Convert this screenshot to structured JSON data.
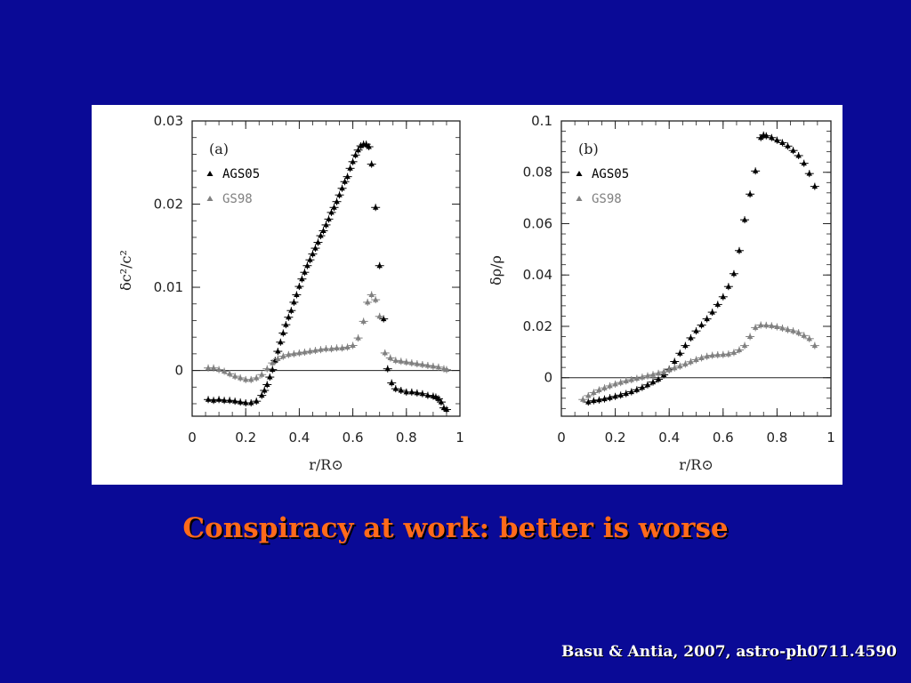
{
  "slide": {
    "caption": "Conspiracy at work: better is worse",
    "citation": "Basu & Antia, 2007, astro-ph0711.4590",
    "background_color": "#0a0a96",
    "caption_color": "#ff6a1a"
  },
  "chart_data": [
    {
      "type": "scatter",
      "panel_label": "(a)",
      "xlabel": "r/R⊙",
      "ylabel": "δc²/c²",
      "xlim": [
        0,
        1
      ],
      "ylim": [
        -0.0055,
        0.03
      ],
      "xticks": [
        0,
        0.2,
        0.4,
        0.6,
        0.8,
        1
      ],
      "xtick_labels": [
        "0",
        "0.2",
        "0.4",
        "0.6",
        "0.8",
        "1"
      ],
      "yticks": [
        0,
        0.01,
        0.02,
        0.03
      ],
      "ytick_labels": [
        "0",
        "0.01",
        "0.02",
        "0.03"
      ],
      "zero_line": true,
      "legend_position": "top-left",
      "series": [
        {
          "name": "AGS05",
          "color": "#000000",
          "x": [
            0.06,
            0.08,
            0.1,
            0.12,
            0.14,
            0.16,
            0.18,
            0.2,
            0.22,
            0.24,
            0.26,
            0.27,
            0.28,
            0.29,
            0.3,
            0.31,
            0.32,
            0.33,
            0.34,
            0.35,
            0.36,
            0.37,
            0.38,
            0.39,
            0.4,
            0.41,
            0.42,
            0.43,
            0.44,
            0.45,
            0.46,
            0.47,
            0.48,
            0.49,
            0.5,
            0.51,
            0.52,
            0.53,
            0.54,
            0.55,
            0.56,
            0.57,
            0.58,
            0.59,
            0.6,
            0.61,
            0.62,
            0.63,
            0.64,
            0.65,
            0.66,
            0.67,
            0.685,
            0.7,
            0.715,
            0.73,
            0.745,
            0.76,
            0.78,
            0.8,
            0.82,
            0.84,
            0.86,
            0.88,
            0.9,
            0.91,
            0.92,
            0.93,
            0.94,
            0.95
          ],
          "y": [
            -0.0035,
            -0.0036,
            -0.0035,
            -0.0036,
            -0.0036,
            -0.0037,
            -0.0038,
            -0.0039,
            -0.0039,
            -0.0037,
            -0.003,
            -0.0024,
            -0.0017,
            -0.0008,
            0.0001,
            0.0012,
            0.0023,
            0.0034,
            0.0045,
            0.0055,
            0.0064,
            0.0072,
            0.0082,
            0.0091,
            0.0101,
            0.011,
            0.0118,
            0.0126,
            0.0133,
            0.014,
            0.0147,
            0.0154,
            0.0162,
            0.0168,
            0.0175,
            0.0182,
            0.019,
            0.0196,
            0.0203,
            0.0211,
            0.0219,
            0.0227,
            0.0233,
            0.0243,
            0.0251,
            0.0259,
            0.0265,
            0.027,
            0.0272,
            0.0272,
            0.0269,
            0.0248,
            0.0196,
            0.0126,
            0.0062,
            0.0002,
            -0.0015,
            -0.0022,
            -0.0024,
            -0.0026,
            -0.0026,
            -0.0027,
            -0.0028,
            -0.003,
            -0.0031,
            -0.0032,
            -0.0034,
            -0.0038,
            -0.0045,
            -0.0047
          ]
        },
        {
          "name": "GS98",
          "color": "#808080",
          "x": [
            0.06,
            0.08,
            0.1,
            0.12,
            0.14,
            0.16,
            0.18,
            0.2,
            0.22,
            0.24,
            0.26,
            0.28,
            0.3,
            0.32,
            0.34,
            0.36,
            0.38,
            0.4,
            0.42,
            0.44,
            0.46,
            0.48,
            0.5,
            0.52,
            0.54,
            0.56,
            0.58,
            0.6,
            0.62,
            0.64,
            0.655,
            0.67,
            0.685,
            0.7,
            0.72,
            0.74,
            0.76,
            0.78,
            0.8,
            0.82,
            0.84,
            0.86,
            0.88,
            0.9,
            0.92,
            0.94,
            0.95
          ],
          "y": [
            0.0003,
            0.0003,
            0.0001,
            -0.0001,
            -0.0004,
            -0.0007,
            -0.0009,
            -0.0011,
            -0.0011,
            -0.0009,
            -0.0005,
            0.0002,
            0.0009,
            0.0014,
            0.0017,
            0.0019,
            0.002,
            0.0021,
            0.0022,
            0.0023,
            0.0024,
            0.0025,
            0.0026,
            0.0026,
            0.0027,
            0.0027,
            0.0028,
            0.003,
            0.0039,
            0.0059,
            0.0082,
            0.0091,
            0.0085,
            0.0065,
            0.0021,
            0.0015,
            0.0012,
            0.0011,
            0.001,
            0.0009,
            0.0008,
            0.0007,
            0.0006,
            0.0005,
            0.0004,
            0.0002,
            0.0001
          ]
        }
      ]
    },
    {
      "type": "scatter",
      "panel_label": "(b)",
      "xlabel": "r/R⊙",
      "ylabel": "δρ/ρ",
      "xlim": [
        0,
        1
      ],
      "ylim": [
        -0.015,
        0.1
      ],
      "xticks": [
        0,
        0.2,
        0.4,
        0.6,
        0.8,
        1
      ],
      "xtick_labels": [
        "0",
        "0.2",
        "0.4",
        "0.6",
        "0.8",
        "1"
      ],
      "yticks": [
        0,
        0.02,
        0.04,
        0.06,
        0.08,
        0.1
      ],
      "ytick_labels": [
        "0",
        "0.02",
        "0.04",
        "0.06",
        "0.08",
        "0.1"
      ],
      "zero_line": true,
      "legend_position": "top-left",
      "series": [
        {
          "name": "AGS05",
          "color": "#000000",
          "x": [
            0.1,
            0.12,
            0.14,
            0.16,
            0.18,
            0.2,
            0.22,
            0.24,
            0.26,
            0.28,
            0.3,
            0.32,
            0.34,
            0.36,
            0.38,
            0.4,
            0.42,
            0.44,
            0.46,
            0.48,
            0.5,
            0.52,
            0.54,
            0.56,
            0.58,
            0.6,
            0.62,
            0.64,
            0.66,
            0.68,
            0.7,
            0.72,
            0.74,
            0.75,
            0.76,
            0.78,
            0.8,
            0.82,
            0.84,
            0.86,
            0.88,
            0.9,
            0.92,
            0.94
          ],
          "y": [
            -0.0095,
            -0.009,
            -0.0087,
            -0.0083,
            -0.0078,
            -0.0073,
            -0.0068,
            -0.0062,
            -0.0055,
            -0.0047,
            -0.0038,
            -0.0028,
            -0.0017,
            -0.0006,
            0.0011,
            0.0033,
            0.0063,
            0.0095,
            0.0125,
            0.0155,
            0.0182,
            0.0205,
            0.0229,
            0.0255,
            0.0285,
            0.0315,
            0.0355,
            0.0405,
            0.0495,
            0.0615,
            0.0715,
            0.0805,
            0.0935,
            0.0945,
            0.0942,
            0.0935,
            0.0925,
            0.0915,
            0.0902,
            0.0885,
            0.0865,
            0.0835,
            0.0795,
            0.0745
          ]
        },
        {
          "name": "GS98",
          "color": "#808080",
          "x": [
            0.08,
            0.1,
            0.12,
            0.14,
            0.16,
            0.18,
            0.2,
            0.22,
            0.24,
            0.26,
            0.28,
            0.3,
            0.32,
            0.34,
            0.36,
            0.38,
            0.4,
            0.42,
            0.44,
            0.46,
            0.48,
            0.5,
            0.52,
            0.54,
            0.56,
            0.58,
            0.6,
            0.62,
            0.64,
            0.66,
            0.68,
            0.7,
            0.72,
            0.74,
            0.76,
            0.78,
            0.8,
            0.82,
            0.84,
            0.86,
            0.88,
            0.9,
            0.92,
            0.94
          ],
          "y": [
            -0.0085,
            -0.007,
            -0.0058,
            -0.0048,
            -0.004,
            -0.0032,
            -0.0025,
            -0.0019,
            -0.0013,
            -0.0008,
            -0.0003,
            0.0002,
            0.0007,
            0.0012,
            0.0017,
            0.0023,
            0.003,
            0.0038,
            0.0045,
            0.0053,
            0.0062,
            0.007,
            0.0077,
            0.0083,
            0.0087,
            0.0089,
            0.009,
            0.0092,
            0.0098,
            0.0108,
            0.0125,
            0.016,
            0.0195,
            0.0205,
            0.0204,
            0.0202,
            0.0198,
            0.0193,
            0.0187,
            0.0182,
            0.0175,
            0.0164,
            0.0152,
            0.0125
          ]
        }
      ]
    }
  ]
}
